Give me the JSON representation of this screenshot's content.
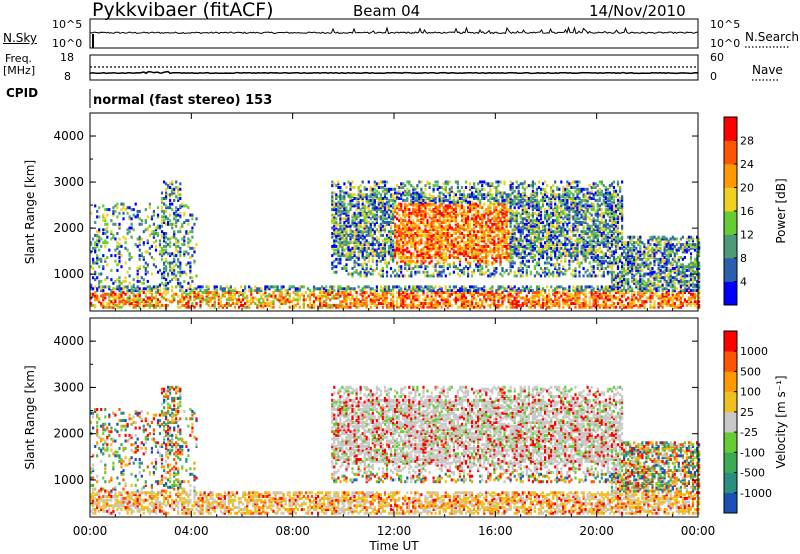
{
  "header": {
    "station": "Pykkvibaer (fitACF)",
    "beam": "Beam 04",
    "date": "14/Nov/2010"
  },
  "panels": {
    "nsky": {
      "label": "N.Sky",
      "ticks_left": [
        "10^5",
        "10^0"
      ],
      "ticks_right": [
        "10^5",
        "10^0"
      ],
      "right_label": "N.Search"
    },
    "freq": {
      "label_line1": "Freq.",
      "label_line2": "[MHz]",
      "ticks_left": [
        "18",
        "8"
      ],
      "ticks_right": [
        "60",
        "0"
      ],
      "right_label": "Nave"
    },
    "cpid": {
      "label": "CPID",
      "value": "normal (fast stereo) 153"
    }
  },
  "chart_data": [
    {
      "type": "heatmap",
      "name": "power",
      "ylabel": "Slant Range [km]",
      "y_ticks": [
        "1000",
        "2000",
        "3000",
        "4000"
      ],
      "ylim": [
        200,
        4500
      ],
      "x_ticks": [
        "00:00",
        "04:00",
        "08:00",
        "12:00",
        "16:00",
        "20:00",
        "00:00"
      ],
      "colorbar": {
        "label": "Power [dB]",
        "ticks": [
          "4",
          "8",
          "12",
          "16",
          "20",
          "24",
          "28"
        ],
        "colors": [
          "#0000ff",
          "#2a5fb0",
          "#4b9a78",
          "#66cc33",
          "#f0d020",
          "#ff9900",
          "#ff5500",
          "#ff0000"
        ]
      }
    },
    {
      "type": "heatmap",
      "name": "velocity",
      "ylabel": "Slant Range [km]",
      "y_ticks": [
        "1000",
        "2000",
        "3000",
        "4000"
      ],
      "ylim": [
        200,
        4500
      ],
      "x_ticks": [
        "00:00",
        "04:00",
        "08:00",
        "12:00",
        "16:00",
        "20:00",
        "00:00"
      ],
      "xlabel": "Time UT",
      "colorbar": {
        "label": "Velocity [m s⁻¹]",
        "ticks": [
          "1000",
          "500",
          "100",
          "25",
          "-25",
          "-100",
          "-500",
          "-1000"
        ],
        "colors": [
          "#1a4fb8",
          "#2a8f7f",
          "#3daa55",
          "#66cc33",
          "#c8c8c8",
          "#f0c020",
          "#ff9900",
          "#ff5500",
          "#ff0000"
        ]
      }
    }
  ]
}
